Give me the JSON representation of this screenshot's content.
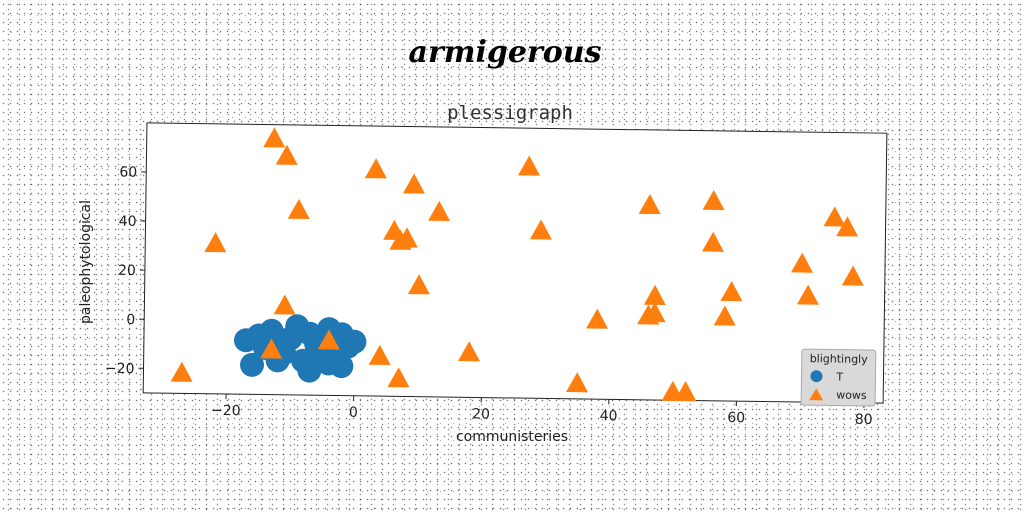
{
  "chart_data": {
    "type": "scatter",
    "title": "armigerous",
    "subtitle": "plessigraph",
    "xlabel": "communisteries",
    "ylabel": "paleophytological",
    "xlim": [
      -33,
      83
    ],
    "ylim": [
      -30,
      80
    ],
    "xticks": [
      "−20",
      "0",
      "20",
      "40",
      "60",
      "80"
    ],
    "yticks": [
      "−20",
      "0",
      "20",
      "40",
      "60"
    ],
    "grid": false,
    "legend": {
      "title": "blightingly",
      "position": "lower-right"
    },
    "series": [
      {
        "name": "T",
        "marker": "circle",
        "color": "#1f77b4",
        "points": [
          [
            -17,
            -8
          ],
          [
            -15,
            -6
          ],
          [
            -13,
            -4
          ],
          [
            -12,
            -10
          ],
          [
            -10,
            -7
          ],
          [
            -9,
            -2
          ],
          [
            -7,
            -5
          ],
          [
            -6,
            -9
          ],
          [
            -5,
            -12
          ],
          [
            -4,
            -3
          ],
          [
            -3,
            -7
          ],
          [
            -2,
            -5
          ],
          [
            -1,
            -10
          ],
          [
            0,
            -8
          ],
          [
            -6,
            -14
          ],
          [
            -8,
            -16
          ],
          [
            -3,
            -15
          ],
          [
            -14,
            -11
          ],
          [
            -16,
            -18
          ],
          [
            -11,
            -13
          ],
          [
            -2,
            -18
          ],
          [
            -7,
            -20
          ],
          [
            -4,
            -17
          ],
          [
            -12,
            -16
          ]
        ]
      },
      {
        "name": "wows",
        "marker": "triangle",
        "color": "#ff7f0e",
        "points": [
          [
            -27,
            -22
          ],
          [
            -22,
            31
          ],
          [
            -13,
            74
          ],
          [
            -11,
            67
          ],
          [
            -11,
            6
          ],
          [
            -9,
            45
          ],
          [
            -13,
            -12
          ],
          [
            -4,
            -8
          ],
          [
            3,
            62
          ],
          [
            4,
            -14
          ],
          [
            6,
            37
          ],
          [
            7,
            33
          ],
          [
            8,
            34
          ],
          [
            9,
            56
          ],
          [
            7,
            -23
          ],
          [
            10,
            15
          ],
          [
            13,
            45
          ],
          [
            18,
            -12
          ],
          [
            27,
            64
          ],
          [
            29,
            38
          ],
          [
            35,
            -24
          ],
          [
            38,
            2
          ],
          [
            46,
            49
          ],
          [
            46,
            4
          ],
          [
            47,
            12
          ],
          [
            47,
            5
          ],
          [
            50,
            -27
          ],
          [
            52,
            -27
          ],
          [
            56,
            51
          ],
          [
            56,
            34
          ],
          [
            58,
            4
          ],
          [
            59,
            14
          ],
          [
            70,
            26
          ],
          [
            71,
            13
          ],
          [
            75,
            45
          ],
          [
            77,
            41
          ],
          [
            78,
            21
          ]
        ]
      }
    ]
  }
}
